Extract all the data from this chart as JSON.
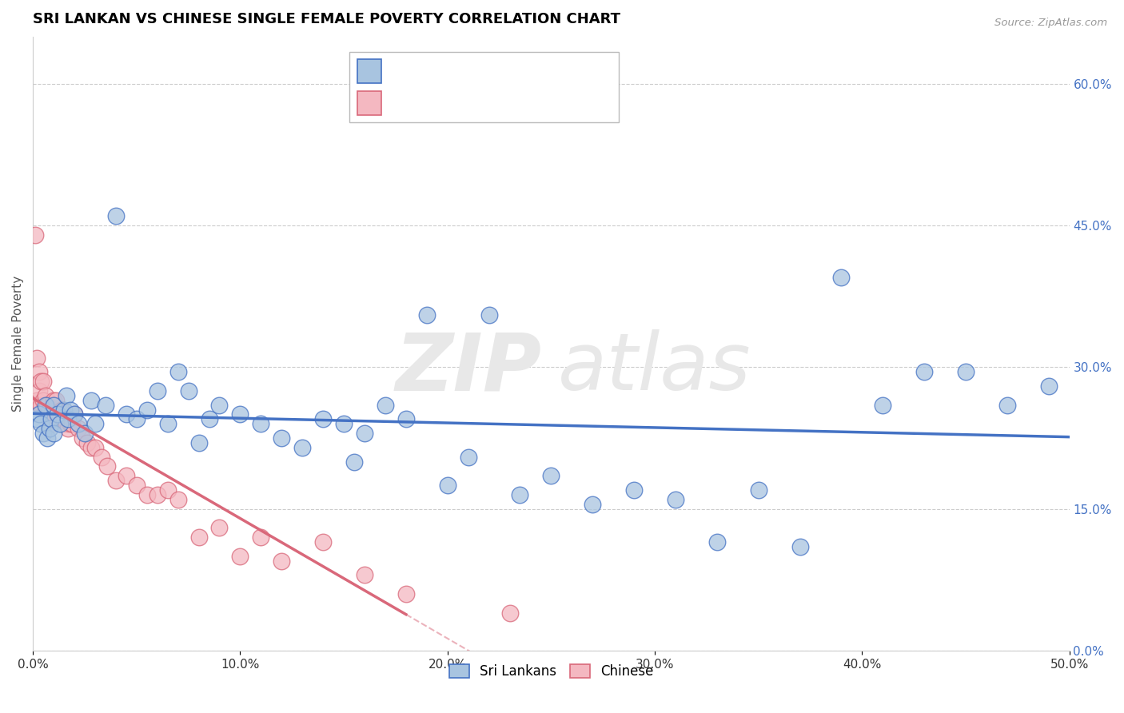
{
  "title": "SRI LANKAN VS CHINESE SINGLE FEMALE POVERTY CORRELATION CHART",
  "source": "Source: ZipAtlas.com",
  "ylabel": "Single Female Poverty",
  "xlim": [
    0.0,
    0.5
  ],
  "ylim": [
    0.0,
    0.65
  ],
  "xticks": [
    0.0,
    0.1,
    0.2,
    0.3,
    0.4,
    0.5
  ],
  "xticklabels": [
    "0.0%",
    "10.0%",
    "20.0%",
    "30.0%",
    "40.0%",
    "50.0%"
  ],
  "yticks_right": [
    0.0,
    0.15,
    0.3,
    0.45,
    0.6
  ],
  "yticklabels_right": [
    "0.0%",
    "15.0%",
    "30.0%",
    "45.0%",
    "60.0%"
  ],
  "sri_lanka_color": "#a8c4e0",
  "sri_lanka_edge": "#4472c4",
  "chinese_color": "#f4b8c1",
  "chinese_edge": "#d9687a",
  "legend_label_1": "Sri Lankans",
  "legend_label_2": "Chinese",
  "sri_lankans_x": [
    0.002,
    0.003,
    0.004,
    0.005,
    0.006,
    0.007,
    0.008,
    0.009,
    0.01,
    0.01,
    0.012,
    0.013,
    0.015,
    0.016,
    0.017,
    0.018,
    0.02,
    0.022,
    0.025,
    0.028,
    0.03,
    0.035,
    0.04,
    0.045,
    0.05,
    0.055,
    0.06,
    0.065,
    0.07,
    0.075,
    0.08,
    0.085,
    0.09,
    0.1,
    0.11,
    0.12,
    0.13,
    0.14,
    0.15,
    0.155,
    0.16,
    0.17,
    0.18,
    0.19,
    0.2,
    0.21,
    0.22,
    0.235,
    0.25,
    0.27,
    0.29,
    0.31,
    0.33,
    0.35,
    0.37,
    0.39,
    0.41,
    0.43,
    0.45,
    0.47,
    0.49
  ],
  "sri_lankans_y": [
    0.245,
    0.25,
    0.24,
    0.23,
    0.26,
    0.225,
    0.235,
    0.245,
    0.23,
    0.26,
    0.25,
    0.24,
    0.255,
    0.27,
    0.245,
    0.255,
    0.25,
    0.24,
    0.23,
    0.265,
    0.24,
    0.26,
    0.46,
    0.25,
    0.245,
    0.255,
    0.275,
    0.24,
    0.295,
    0.275,
    0.22,
    0.245,
    0.26,
    0.25,
    0.24,
    0.225,
    0.215,
    0.245,
    0.24,
    0.2,
    0.23,
    0.26,
    0.245,
    0.355,
    0.175,
    0.205,
    0.355,
    0.165,
    0.185,
    0.155,
    0.17,
    0.16,
    0.115,
    0.17,
    0.11,
    0.395,
    0.26,
    0.295,
    0.295,
    0.26,
    0.28
  ],
  "chinese_x": [
    0.001,
    0.001,
    0.002,
    0.002,
    0.003,
    0.003,
    0.004,
    0.004,
    0.005,
    0.005,
    0.006,
    0.006,
    0.007,
    0.007,
    0.008,
    0.008,
    0.009,
    0.009,
    0.01,
    0.01,
    0.011,
    0.012,
    0.013,
    0.014,
    0.015,
    0.016,
    0.017,
    0.018,
    0.019,
    0.02,
    0.022,
    0.024,
    0.026,
    0.028,
    0.03,
    0.033,
    0.036,
    0.04,
    0.045,
    0.05,
    0.055,
    0.06,
    0.065,
    0.07,
    0.08,
    0.09,
    0.1,
    0.11,
    0.12,
    0.14,
    0.16,
    0.18,
    0.23
  ],
  "chinese_y": [
    0.44,
    0.26,
    0.31,
    0.265,
    0.295,
    0.275,
    0.285,
    0.26,
    0.285,
    0.265,
    0.27,
    0.255,
    0.26,
    0.26,
    0.255,
    0.245,
    0.24,
    0.25,
    0.265,
    0.26,
    0.265,
    0.25,
    0.245,
    0.255,
    0.245,
    0.24,
    0.235,
    0.24,
    0.24,
    0.25,
    0.235,
    0.225,
    0.22,
    0.215,
    0.215,
    0.205,
    0.195,
    0.18,
    0.185,
    0.175,
    0.165,
    0.165,
    0.17,
    0.16,
    0.12,
    0.13,
    0.1,
    0.12,
    0.095,
    0.115,
    0.08,
    0.06,
    0.04
  ]
}
